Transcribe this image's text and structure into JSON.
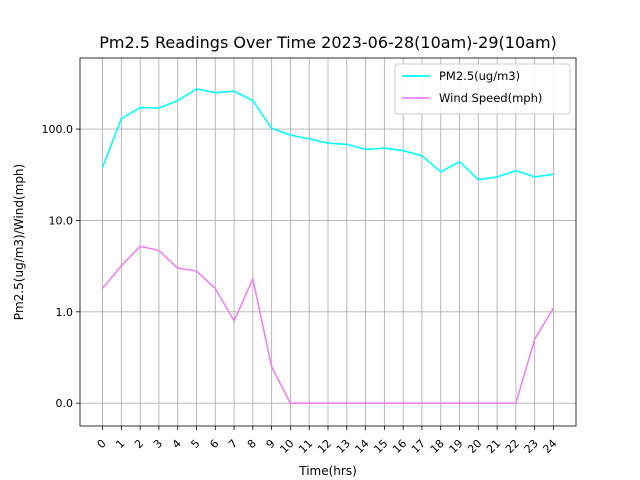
{
  "chart_data": {
    "type": "line",
    "title": "Pm2.5 Readings Over Time 2023-06-28(10am)-29(10am)",
    "xlabel": "Time(hrs)",
    "ylabel": "Pm2.5(ug/m3)/Wind(mph)",
    "yscale": "symlog",
    "x": [
      0,
      1,
      2,
      3,
      4,
      5,
      6,
      7,
      8,
      9,
      10,
      11,
      12,
      13,
      14,
      15,
      16,
      17,
      18,
      19,
      20,
      21,
      22,
      23,
      24
    ],
    "x_tick_labels": [
      "0",
      "1",
      "2",
      "3",
      "4",
      "5",
      "6",
      "7",
      "8",
      "9",
      "10",
      "11",
      "12",
      "13",
      "14",
      "15",
      "16",
      "17",
      "18",
      "19",
      "20",
      "21",
      "22",
      "23",
      "24"
    ],
    "y_ticks": [
      {
        "value": 0,
        "label": "0.0"
      },
      {
        "value": 1,
        "label": "1.0"
      },
      {
        "value": 10,
        "label": "10.0"
      },
      {
        "value": 100,
        "label": "100.0"
      }
    ],
    "ylim": [
      -0.25,
      600
    ],
    "grid": true,
    "legend_position": "top-right",
    "series": [
      {
        "name": "PM2.5(ug/m3)",
        "color": "#00ffff",
        "values": [
          38,
          130,
          172,
          170,
          205,
          275,
          250,
          260,
          205,
          102,
          86,
          78,
          70,
          68,
          60,
          62,
          58,
          51,
          34,
          44,
          28,
          30,
          35,
          30,
          32
        ]
      },
      {
        "name": "Wind Speed(mph)",
        "color": "#ee82ee",
        "values": [
          1.8,
          3.2,
          5.2,
          4.7,
          3.0,
          2.8,
          1.8,
          0.9,
          2.3,
          0.4,
          0.0,
          0.0,
          0.0,
          0.0,
          0.0,
          0.0,
          0.0,
          0.0,
          0.0,
          0.0,
          0.0,
          0.0,
          0.0,
          0.7,
          1.1
        ]
      }
    ]
  }
}
